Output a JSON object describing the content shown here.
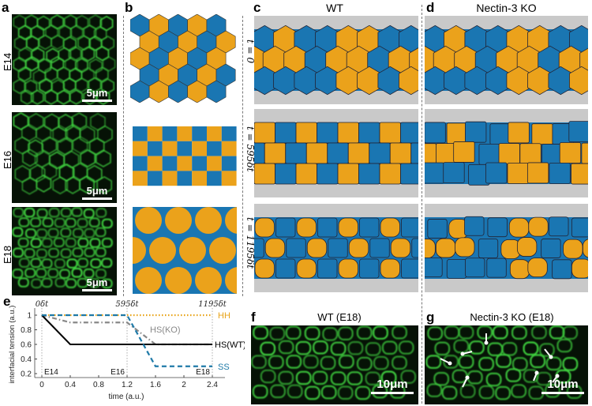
{
  "panels": {
    "a": {
      "label": "a",
      "rows": [
        "E14",
        "E16",
        "E18"
      ],
      "scale_bar": "5μm"
    },
    "b": {
      "label": "b"
    },
    "c": {
      "label": "c",
      "title": "WT"
    },
    "d": {
      "label": "d",
      "title": "Nectin-3 KO"
    },
    "time_labels": [
      "t = 0",
      "t = 595δt",
      "t = 1195δt"
    ],
    "e": {
      "label": "e"
    },
    "f": {
      "label": "f",
      "title": "WT (E18)",
      "scale_bar": "10μm"
    },
    "g": {
      "label": "g",
      "title": "Nectin-3 KO (E18)",
      "scale_bar": "10μm"
    }
  },
  "colors": {
    "blue_cell": "#1a76b2",
    "orange_cell": "#eba21b",
    "background_gray": "#c9c9c9",
    "fluorescence": "#3fd23f"
  },
  "chart_data": {
    "type": "line",
    "xlabel": "time (a.u.)",
    "ylabel": "interfacial tension (a.u.)",
    "xlim": [
      0,
      2.6
    ],
    "ylim": [
      0.1,
      1.15
    ],
    "xticks": [
      0,
      0.4,
      0.8,
      1.2,
      1.6,
      2,
      2.4
    ],
    "xtick_labels": [
      "0",
      "0.4",
      "0.8",
      "1.2",
      "1.6",
      "2",
      "2.4"
    ],
    "yticks": [
      0.2,
      0.4,
      0.6,
      0.8,
      1
    ],
    "ytick_labels": [
      "0.2",
      "0.4",
      "0.6",
      "0.8",
      "1"
    ],
    "top_ticks": [
      {
        "x": 0,
        "label": "0δt"
      },
      {
        "x": 1.2,
        "label": "595δt"
      },
      {
        "x": 2.4,
        "label": "1195δt"
      }
    ],
    "stage_labels": [
      {
        "x": 0,
        "label": "E14"
      },
      {
        "x": 1.2,
        "label": "E16"
      },
      {
        "x": 2.4,
        "label": "E18"
      }
    ],
    "series": [
      {
        "name": "HH",
        "color": "#e8a317",
        "style": "dotted",
        "x": [
          0,
          2.4
        ],
        "y": [
          1,
          1
        ]
      },
      {
        "name": "HS(KO)",
        "color": "#888888",
        "style": "dashdot",
        "x": [
          0,
          0.4,
          1.2,
          1.6,
          2.4
        ],
        "y": [
          1,
          0.9,
          0.9,
          0.6,
          0.6
        ]
      },
      {
        "name": "HS(WT)",
        "color": "#000000",
        "style": "solid",
        "x": [
          0,
          0.4,
          2.4
        ],
        "y": [
          1,
          0.6,
          0.6
        ]
      },
      {
        "name": "SS",
        "color": "#1f7aa8",
        "style": "dashed",
        "x": [
          0,
          1.2,
          1.6,
          2.4
        ],
        "y": [
          1,
          1,
          0.3,
          0.3
        ]
      }
    ]
  }
}
